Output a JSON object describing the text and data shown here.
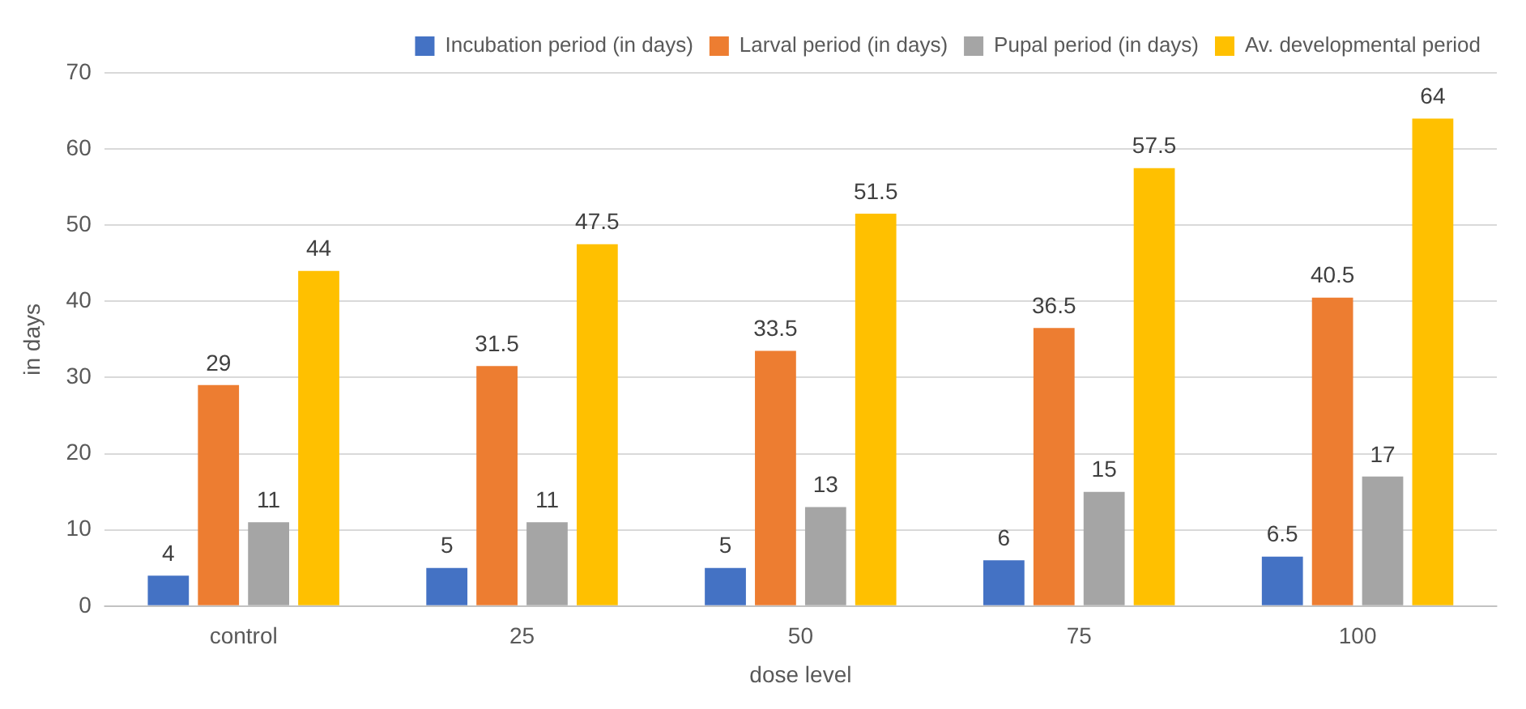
{
  "chart_data": {
    "type": "bar",
    "xlabel": "dose level",
    "ylabel": "in days",
    "categories": [
      "control",
      "25",
      "50",
      "75",
      "100"
    ],
    "series": [
      {
        "name": "Incubation period (in days)",
        "color": "#4472c4",
        "values": [
          4,
          5,
          5,
          6,
          6.5
        ]
      },
      {
        "name": "Larval period (in days)",
        "color": "#ed7d31",
        "values": [
          29,
          31.5,
          33.5,
          36.5,
          40.5
        ]
      },
      {
        "name": "Pupal period (in days)",
        "color": "#a5a5a5",
        "values": [
          11,
          11,
          13,
          15,
          17
        ]
      },
      {
        "name": "Av. developmental period",
        "color": "#ffc000",
        "values": [
          44,
          47.5,
          51.5,
          57.5,
          64
        ]
      }
    ],
    "ylim": [
      0,
      70
    ],
    "yticks": [
      0,
      10,
      20,
      30,
      40,
      50,
      60,
      70
    ],
    "grid": "y",
    "legend": "top right",
    "data_labels": true
  }
}
